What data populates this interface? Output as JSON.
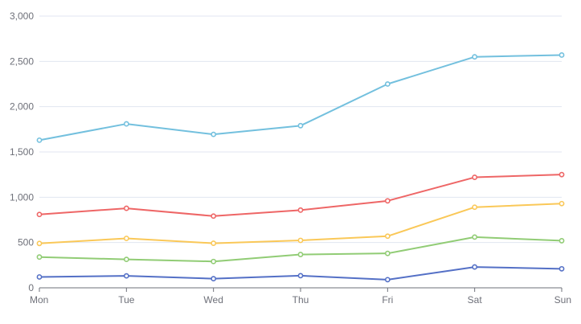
{
  "chart_data": {
    "type": "line",
    "categories": [
      "Mon",
      "Tue",
      "Wed",
      "Thu",
      "Fri",
      "Sat",
      "Sun"
    ],
    "ylim": [
      0,
      3000
    ],
    "yticks": [
      0,
      500,
      1000,
      1500,
      2000,
      2500,
      3000
    ],
    "ytick_labels": [
      "0",
      "500",
      "1,000",
      "1,500",
      "2,000",
      "2,500",
      "3,000"
    ],
    "grid": "horizontal",
    "series": [
      {
        "color": "#5470c6",
        "values": [
          120,
          132,
          101,
          134,
          90,
          230,
          210
        ]
      },
      {
        "color": "#91cc75",
        "values": [
          340,
          314,
          291,
          368,
          380,
          560,
          520
        ]
      },
      {
        "color": "#fac858",
        "values": [
          490,
          546,
          492,
          524,
          570,
          890,
          930
        ]
      },
      {
        "color": "#ee6666",
        "values": [
          810,
          878,
          792,
          858,
          960,
          1220,
          1250
        ]
      },
      {
        "color": "#73c0de",
        "values": [
          1630,
          1810,
          1694,
          1790,
          2250,
          2550,
          2570
        ]
      }
    ]
  }
}
